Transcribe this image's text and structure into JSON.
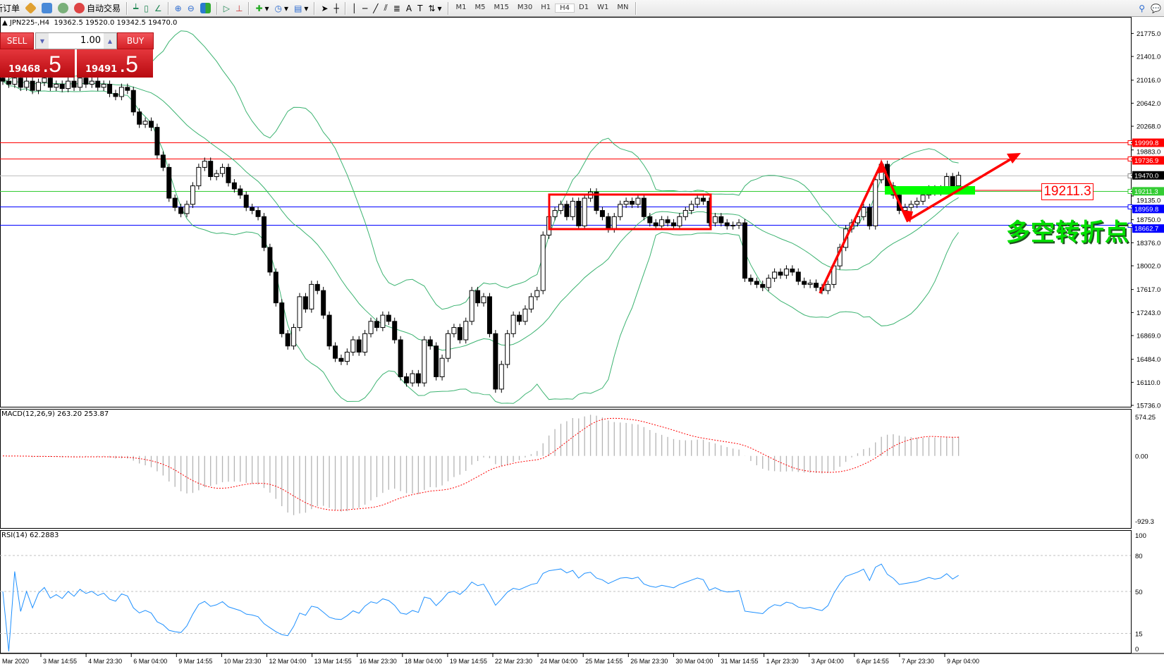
{
  "toolbar": {
    "new_order": "新订单",
    "auto_trading": "自动交易",
    "timeframes": [
      "M1",
      "M5",
      "M15",
      "M30",
      "H1",
      "H4",
      "D1",
      "W1",
      "MN"
    ],
    "active_timeframe": "H4"
  },
  "chart_header": {
    "symbol": "JPN225-,H4",
    "ohlc": "19362.5 19520.0 19342.5 19470.0"
  },
  "trade_panel": {
    "sell_label": "SELL",
    "buy_label": "BUY",
    "lot": "1.00",
    "sell_price_main": "19468",
    "sell_price_frac": ".5",
    "buy_price_main": "19491",
    "buy_price_frac": ".5",
    "color": "#d42025"
  },
  "annotations": {
    "level_box_label": "19211.3",
    "turning_point_text": "多空转折点",
    "arrow_color": "#ff0000",
    "text_color": "#00ff00"
  },
  "price_levels": [
    {
      "value": "19999.8",
      "color": "#ff0000"
    },
    {
      "value": "19736.9",
      "color": "#ff0000"
    },
    {
      "value": "19470.0",
      "color": "#000000",
      "line_color": "#c0c0c0"
    },
    {
      "value": "19211.3",
      "color": "#33cc33"
    },
    {
      "value": "18959.8",
      "color": "#0000ff"
    },
    {
      "value": "18662.7",
      "color": "#0000ff"
    }
  ],
  "macd": {
    "label": "MACD(12,26,9) 263.20 253.87",
    "axis": [
      "574.25",
      "0.00",
      "-929.3"
    ],
    "histogram_color": "#b4b4b4",
    "signal_color": "#ff0000"
  },
  "rsi": {
    "label": "RSI(14) 62.2883",
    "axis": [
      "100",
      "80",
      "50",
      "15",
      "0"
    ],
    "color": "#1e90ff"
  },
  "chart_data": {
    "type": "candlestick",
    "symbol": "JPN225-",
    "timeframe": "H4",
    "ylim": [
      15736.0,
      21775.0
    ],
    "y_ticks": [
      "21775.0",
      "21401.0",
      "21016.0",
      "20642.0",
      "20268.0",
      "19883.0",
      "19135.0",
      "18750.0",
      "18376.0",
      "18002.0",
      "17617.0",
      "17243.0",
      "16869.0",
      "16484.0",
      "16110.0",
      "15736.0"
    ],
    "x_ticks": [
      "Mar 2020",
      "3 Mar 14:55",
      "4 Mar 23:30",
      "6 Mar 04:00",
      "9 Mar 14:55",
      "10 Mar 23:30",
      "12 Mar 04:00",
      "13 Mar 14:55",
      "16 Mar 23:30",
      "18 Mar 04:00",
      "19 Mar 14:55",
      "22 Mar 23:30",
      "24 Mar 04:00",
      "25 Mar 14:55",
      "26 Mar 23:30",
      "30 Mar 04:00",
      "31 Mar 14:55",
      "1 Apr 23:30",
      "3 Apr 04:00",
      "6 Apr 14:55",
      "7 Apr 23:30",
      "9 Apr 04:00"
    ],
    "grid": false,
    "indicators": [
      "Bollinger Bands",
      "MACD(12,26,9)",
      "RSI(14)"
    ],
    "closes": [
      21000,
      20950,
      21050,
      20900,
      21000,
      20850,
      20980,
      21050,
      20900,
      20950,
      20880,
      21000,
      20900,
      21050,
      20950,
      21000,
      20900,
      20950,
      20800,
      20750,
      20900,
      20850,
      20500,
      20300,
      20350,
      20250,
      19800,
      19600,
      19100,
      18950,
      18850,
      19000,
      19300,
      19600,
      19700,
      19450,
      19500,
      19600,
      19350,
      19250,
      19150,
      18950,
      18900,
      18800,
      18300,
      17900,
      17400,
      16900,
      16700,
      17000,
      17500,
      17300,
      17700,
      17600,
      17200,
      16700,
      16500,
      16450,
      16600,
      16800,
      16600,
      16900,
      17100,
      17000,
      17200,
      17100,
      16800,
      16200,
      16100,
      16250,
      16100,
      16800,
      16700,
      16200,
      16500,
      16900,
      17000,
      16800,
      17100,
      17600,
      17400,
      17500,
      16900,
      16000,
      16400,
      16900,
      17200,
      17100,
      17300,
      17500,
      17600,
      18500,
      18800,
      18900,
      19000,
      18800,
      19050,
      18650,
      19100,
      19200,
      18900,
      18800,
      18600,
      18800,
      19000,
      19050,
      19000,
      19100,
      18800,
      18700,
      18650,
      18750,
      18700,
      18650,
      18800,
      18900,
      19000,
      19100,
      19050,
      18700,
      18800,
      18700,
      18650,
      18660,
      18700,
      17800,
      17750,
      17700,
      17650,
      17800,
      17900,
      17850,
      17950,
      17900,
      17750,
      17700,
      17720,
      17650,
      17600,
      17700,
      18000,
      18300,
      18600,
      18700,
      18800,
      18950,
      18650,
      19400,
      19650,
      19300,
      19150,
      18900,
      18950,
      19000,
      19050,
      19150,
      19250,
      19200,
      19250,
      19450,
      19300,
      19470
    ]
  }
}
